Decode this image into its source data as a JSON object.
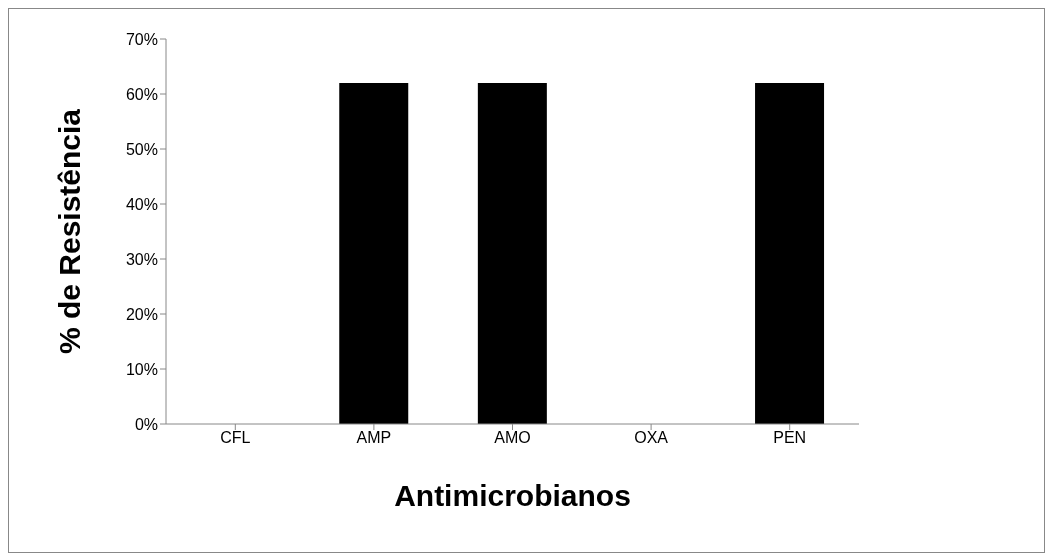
{
  "chart_data": {
    "type": "bar",
    "xlabel": "Antimicrobianos",
    "ylabel": "% de Resistência",
    "categories": [
      "CFL",
      "AMP",
      "AMO",
      "OXA",
      "PEN"
    ],
    "values": [
      0,
      62,
      62,
      0,
      62
    ],
    "color": "#000000",
    "ylim": [
      0,
      70
    ],
    "yticks": [
      {
        "value": 0,
        "label": "0%"
      },
      {
        "value": 10,
        "label": "10%"
      },
      {
        "value": 20,
        "label": "20%"
      },
      {
        "value": 30,
        "label": "30%"
      },
      {
        "value": 40,
        "label": "40%"
      },
      {
        "value": 50,
        "label": "50%"
      },
      {
        "value": 60,
        "label": "60%"
      },
      {
        "value": 70,
        "label": "70%"
      }
    ]
  }
}
